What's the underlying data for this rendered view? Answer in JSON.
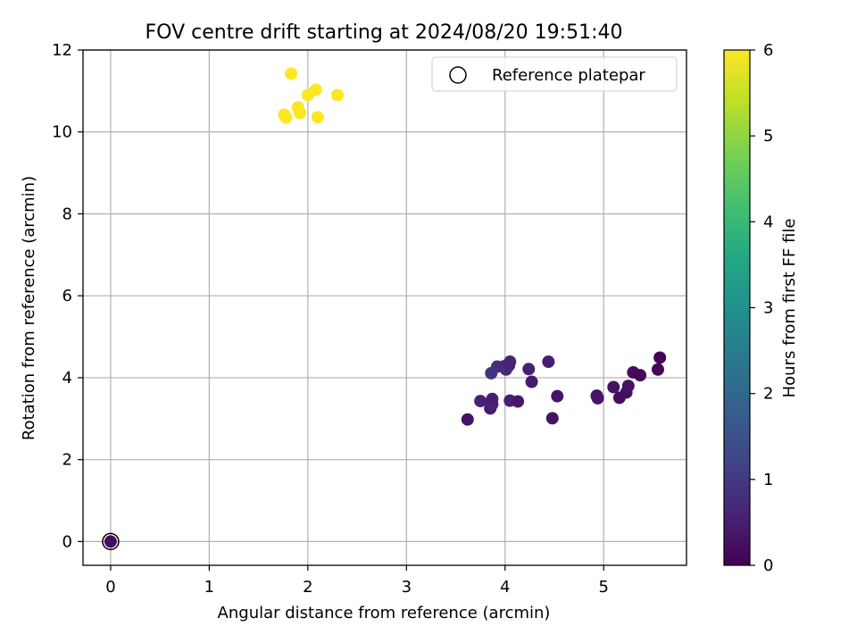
{
  "chart_data": {
    "type": "scatter",
    "title": "FOV centre drift starting at 2024/08/20 19:51:40",
    "xlabel": "Angular distance from reference (arcmin)",
    "ylabel": "Rotation from reference (arcmin)",
    "xlim": [
      -0.28,
      5.84
    ],
    "ylim": [
      -0.58,
      12.0
    ],
    "xticks": [
      0,
      1,
      2,
      3,
      4,
      5
    ],
    "yticks": [
      0,
      2,
      4,
      6,
      8,
      10,
      12
    ],
    "grid": true,
    "legend": {
      "placement": "top-right",
      "entries": [
        "Reference platepar"
      ]
    },
    "colorbar": {
      "label": "Hours from first FF file",
      "range": [
        0,
        6
      ],
      "ticks": [
        0,
        1,
        2,
        3,
        4,
        5,
        6
      ],
      "colormap": "viridis"
    },
    "reference_point": {
      "x": 0,
      "y": 0
    },
    "points": [
      {
        "x": 0.0,
        "y": 0.0,
        "hours": 0.2
      },
      {
        "x": 3.62,
        "y": 2.98,
        "hours": 0.3
      },
      {
        "x": 3.75,
        "y": 3.43,
        "hours": 0.55
      },
      {
        "x": 3.85,
        "y": 3.25,
        "hours": 0.45
      },
      {
        "x": 3.87,
        "y": 3.35,
        "hours": 0.6
      },
      {
        "x": 3.87,
        "y": 3.48,
        "hours": 0.5
      },
      {
        "x": 3.86,
        "y": 4.11,
        "hours": 0.9
      },
      {
        "x": 3.92,
        "y": 4.27,
        "hours": 0.8
      },
      {
        "x": 3.99,
        "y": 4.28,
        "hours": 0.7
      },
      {
        "x": 4.01,
        "y": 4.2,
        "hours": 0.75
      },
      {
        "x": 4.04,
        "y": 4.3,
        "hours": 0.65
      },
      {
        "x": 4.05,
        "y": 4.39,
        "hours": 0.6
      },
      {
        "x": 4.05,
        "y": 3.44,
        "hours": 0.5
      },
      {
        "x": 4.13,
        "y": 3.42,
        "hours": 0.4
      },
      {
        "x": 4.24,
        "y": 4.21,
        "hours": 0.55
      },
      {
        "x": 4.27,
        "y": 3.9,
        "hours": 0.45
      },
      {
        "x": 4.44,
        "y": 4.39,
        "hours": 0.5
      },
      {
        "x": 4.48,
        "y": 3.01,
        "hours": 0.3
      },
      {
        "x": 4.53,
        "y": 3.55,
        "hours": 0.35
      },
      {
        "x": 4.93,
        "y": 3.56,
        "hours": 0.3
      },
      {
        "x": 4.94,
        "y": 3.5,
        "hours": 0.35
      },
      {
        "x": 5.1,
        "y": 3.77,
        "hours": 0.3
      },
      {
        "x": 5.16,
        "y": 3.51,
        "hours": 0.2
      },
      {
        "x": 5.23,
        "y": 3.64,
        "hours": 0.25
      },
      {
        "x": 5.25,
        "y": 3.8,
        "hours": 0.3
      },
      {
        "x": 5.3,
        "y": 4.13,
        "hours": 0.2
      },
      {
        "x": 5.37,
        "y": 4.06,
        "hours": 0.15
      },
      {
        "x": 5.55,
        "y": 4.2,
        "hours": 0.1
      },
      {
        "x": 5.57,
        "y": 4.49,
        "hours": 0.05
      },
      {
        "x": 1.76,
        "y": 10.42,
        "hours": 6.0
      },
      {
        "x": 1.78,
        "y": 10.35,
        "hours": 6.0
      },
      {
        "x": 1.83,
        "y": 11.42,
        "hours": 6.0
      },
      {
        "x": 1.9,
        "y": 10.6,
        "hours": 6.0
      },
      {
        "x": 1.92,
        "y": 10.46,
        "hours": 6.0
      },
      {
        "x": 2.0,
        "y": 10.9,
        "hours": 6.0
      },
      {
        "x": 2.08,
        "y": 11.03,
        "hours": 6.0
      },
      {
        "x": 2.1,
        "y": 10.36,
        "hours": 6.0
      },
      {
        "x": 2.3,
        "y": 10.9,
        "hours": 6.0
      }
    ]
  }
}
